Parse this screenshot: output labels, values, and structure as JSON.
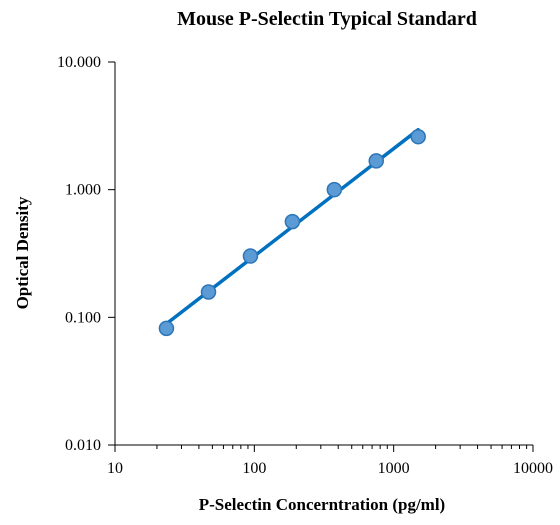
{
  "chart_data": {
    "type": "scatter",
    "title": "Mouse P-Selectin Typical Standard",
    "xlabel": "P-Selectin Concerntration (pg/ml)",
    "ylabel": "Optical Density",
    "x_scale": "log",
    "y_scale": "log",
    "xlim": [
      10,
      10000
    ],
    "ylim": [
      0.01,
      10
    ],
    "x_ticks": [
      10,
      100,
      1000,
      10000
    ],
    "x_tick_labels": [
      "10",
      "100",
      "1000",
      "10000"
    ],
    "y_ticks": [
      0.01,
      0.1,
      1,
      10
    ],
    "y_tick_labels": [
      "0.010",
      "0.100",
      "1.000",
      "10.000"
    ],
    "grid": false,
    "legend": "none",
    "series": [
      {
        "x": [
          23.4,
          46.9,
          93.8,
          187.5,
          375,
          750,
          1500
        ],
        "y": [
          0.082,
          0.158,
          0.302,
          0.562,
          1.0,
          1.68,
          2.6
        ],
        "color": "#5B9BD5",
        "edge_color": "#2E75B6"
      }
    ],
    "trendline": {
      "type": "power",
      "x": [
        23.4,
        1500
      ],
      "y": [
        0.089,
        2.95
      ],
      "color": "#0070C0"
    }
  }
}
